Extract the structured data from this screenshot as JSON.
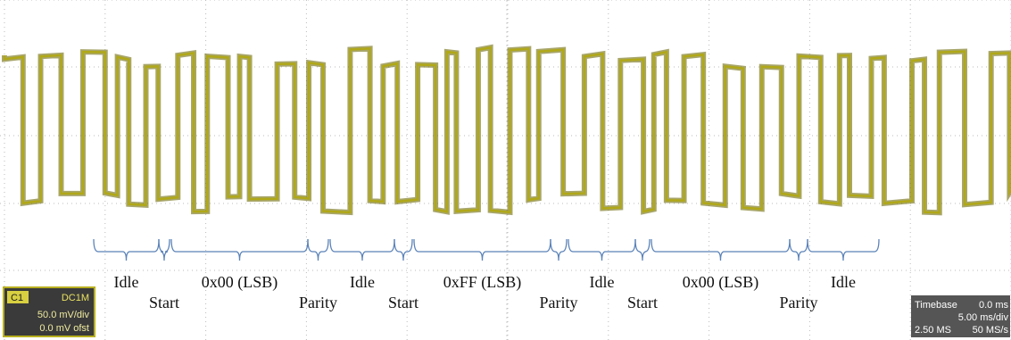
{
  "annotations": [
    "Idle",
    "Start",
    "0x00 (LSB)",
    "Parity",
    "Idle",
    "Start",
    "0xFF (LSB)",
    "Parity",
    "Idle",
    "Start",
    "0x00 (LSB)",
    "Parity",
    "Idle"
  ],
  "channel_box": {
    "channel": "C1",
    "coupling": "DC1M",
    "scale": "50.0 mV/div",
    "offset": "0.0 mV ofst"
  },
  "timebase_box": {
    "title": "Timebase",
    "delay": "0.0 ms",
    "scale": "5.00 ms/div",
    "samples": "2.50 MS",
    "rate": "50 MS/s"
  }
}
